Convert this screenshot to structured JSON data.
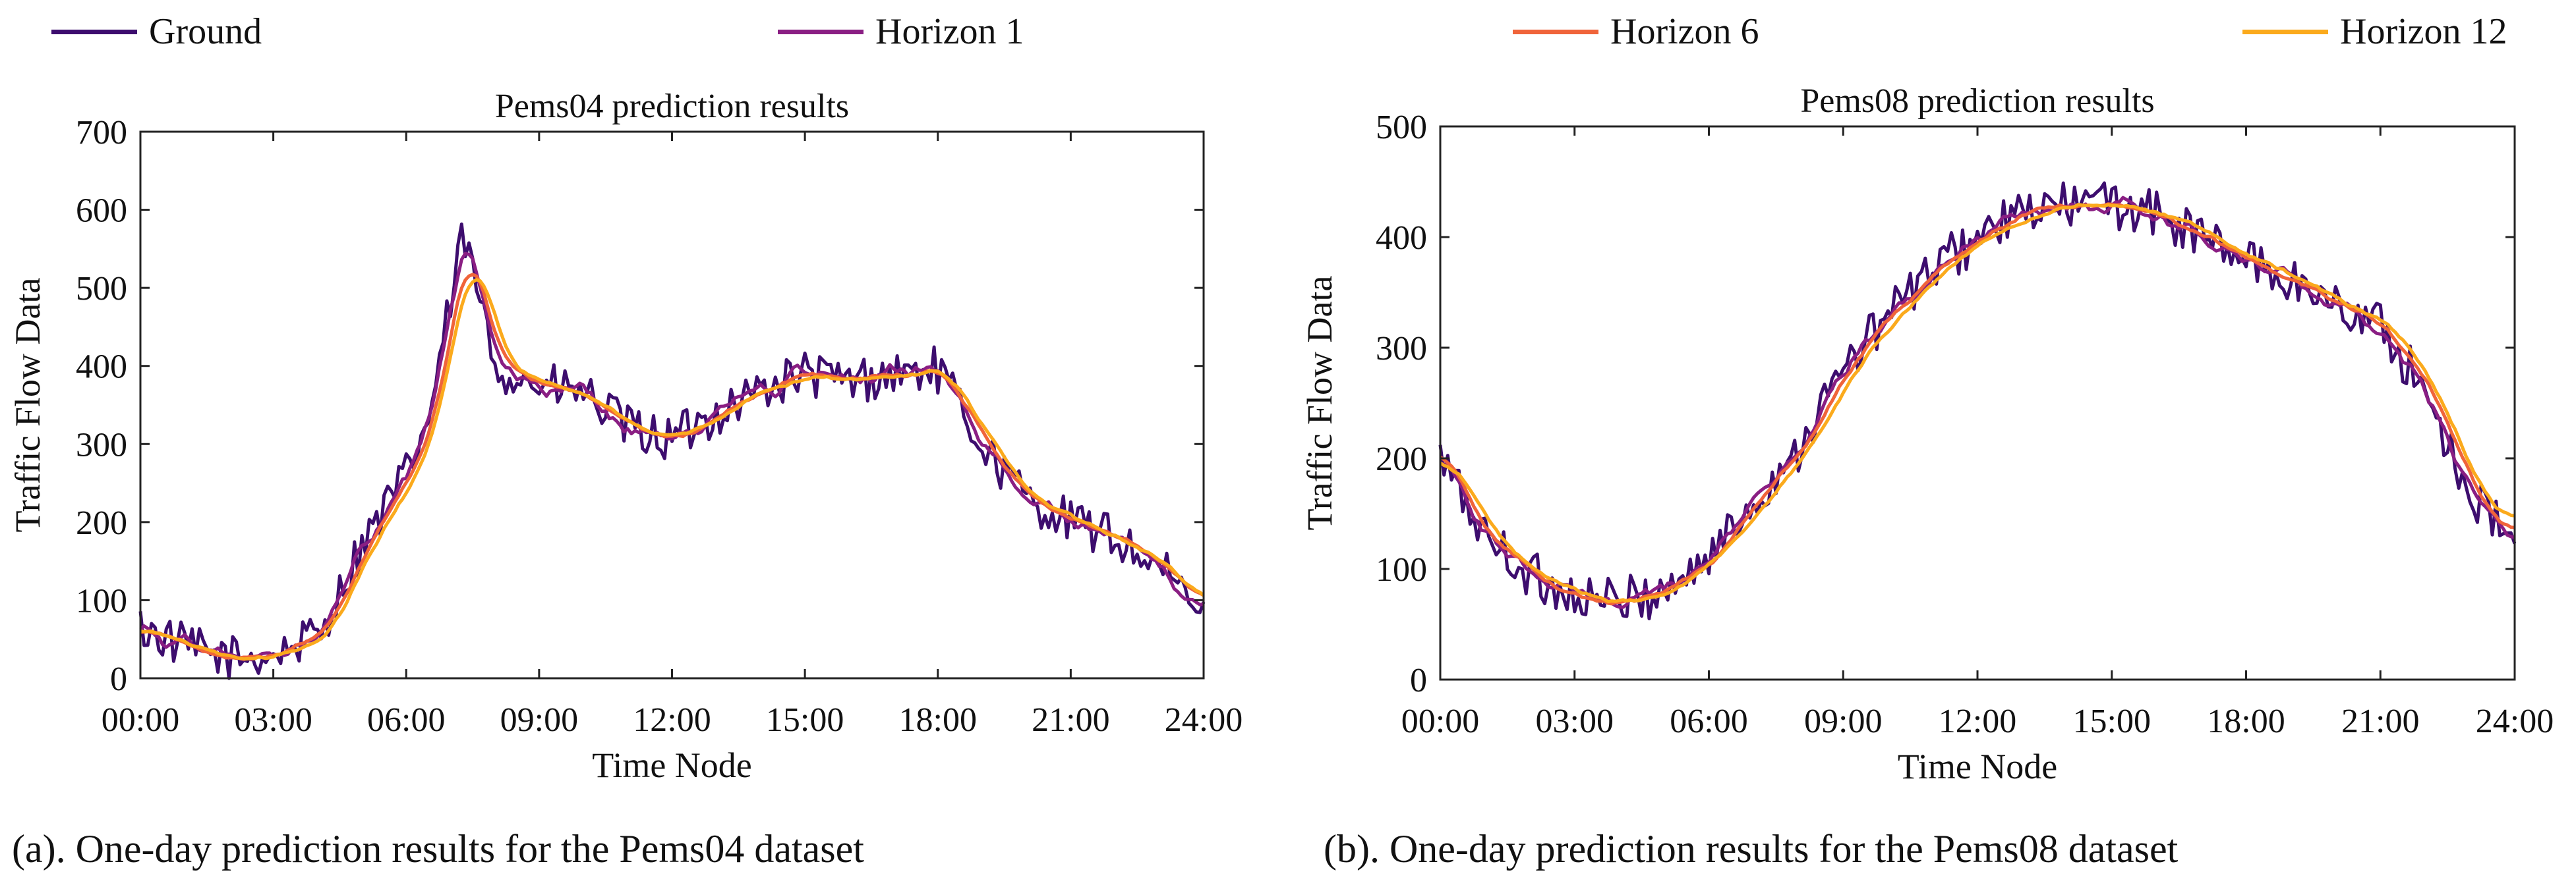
{
  "legend": [
    {
      "name": "Ground",
      "color": "#3d0d6e"
    },
    {
      "name": "Horizon 1",
      "color": "#8a1e83"
    },
    {
      "name": "Horizon 6",
      "color": "#f0643a"
    },
    {
      "name": "Horizon 12",
      "color": "#fbaa1c"
    }
  ],
  "captions": {
    "a": "(a). One-day prediction results for the Pems04 dataset",
    "b": "(b). One-day prediction results for the Pems08 dataset"
  },
  "chart_data": [
    {
      "type": "line",
      "title": "Pems04 prediction results",
      "xlabel": "Time Node",
      "ylabel": "Traffic Flow Data",
      "xlim": [
        0,
        24
      ],
      "ylim": [
        0,
        700
      ],
      "xticks": [
        "00:00",
        "03:00",
        "06:00",
        "09:00",
        "12:00",
        "15:00",
        "18:00",
        "21:00",
        "24:00"
      ],
      "yticks": [
        0,
        100,
        200,
        300,
        400,
        500,
        600,
        700
      ],
      "grid": false,
      "profile": {
        "x": [
          0,
          1,
          2,
          3,
          4,
          4.5,
          5,
          6,
          6.5,
          7,
          7.3,
          7.5,
          8,
          9,
          10,
          11,
          12,
          13,
          14,
          15,
          16,
          17,
          18,
          19,
          20,
          21,
          22,
          23,
          24
        ],
        "y": [
          65,
          40,
          25,
          30,
          55,
          110,
          170,
          260,
          330,
          480,
          570,
          520,
          400,
          375,
          365,
          320,
          305,
          340,
          370,
          390,
          380,
          390,
          395,
          300,
          230,
          200,
          180,
          140,
          80
        ]
      },
      "series": [
        {
          "name": "Ground",
          "noise": 30,
          "shift": 0,
          "smooth": 1
        },
        {
          "name": "Horizon 1",
          "noise": 20,
          "shift": 0.05,
          "smooth": 2
        },
        {
          "name": "Horizon 6",
          "noise": 12,
          "shift": 0.15,
          "smooth": 4
        },
        {
          "name": "Horizon 12",
          "noise": 12,
          "shift": 0.25,
          "smooth": 5
        }
      ]
    },
    {
      "type": "line",
      "title": "Pems08 prediction results",
      "xlabel": "Time Node",
      "ylabel": "Traffic Flow Data",
      "xlim": [
        0,
        24
      ],
      "ylim": [
        0,
        500
      ],
      "xticks": [
        "00:00",
        "03:00",
        "06:00",
        "09:00",
        "12:00",
        "15:00",
        "18:00",
        "21:00",
        "24:00"
      ],
      "yticks": [
        0,
        100,
        200,
        300,
        400,
        500
      ],
      "grid": false,
      "profile": {
        "x": [
          0,
          1,
          2,
          3,
          4,
          5,
          6,
          7,
          8,
          9,
          10,
          11,
          12,
          13,
          14,
          15,
          16,
          17,
          18,
          19,
          20,
          21,
          22,
          23,
          24
        ],
        "y": [
          200,
          130,
          95,
          75,
          70,
          80,
          110,
          160,
          210,
          280,
          330,
          370,
          400,
          420,
          430,
          430,
          420,
          400,
          380,
          360,
          340,
          320,
          260,
          170,
          120
        ]
      },
      "series": [
        {
          "name": "Ground",
          "noise": 22,
          "shift": 0,
          "smooth": 1
        },
        {
          "name": "Horizon 1",
          "noise": 14,
          "shift": 0.05,
          "smooth": 2
        },
        {
          "name": "Horizon 6",
          "noise": 9,
          "shift": 0.15,
          "smooth": 4
        },
        {
          "name": "Horizon 12",
          "noise": 9,
          "shift": 0.3,
          "smooth": 5
        }
      ]
    }
  ]
}
